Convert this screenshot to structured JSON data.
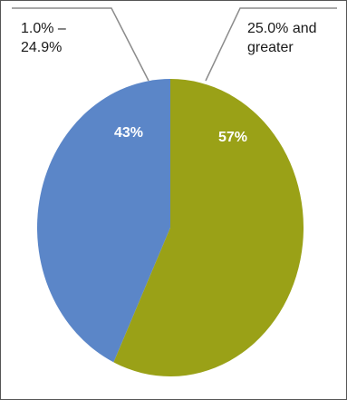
{
  "chart_data": {
    "type": "pie",
    "slices": [
      {
        "label_lines": [
          "1.0% –",
          "24.9%"
        ],
        "value": 43,
        "display": "43%",
        "color": "#5b86c8"
      },
      {
        "label_lines": [
          "25.0% and",
          "greater"
        ],
        "value": 57,
        "display": "57%",
        "color": "#9aa117"
      }
    ],
    "label_color": "#ffffff",
    "leader_color": "#8c8c8c"
  }
}
